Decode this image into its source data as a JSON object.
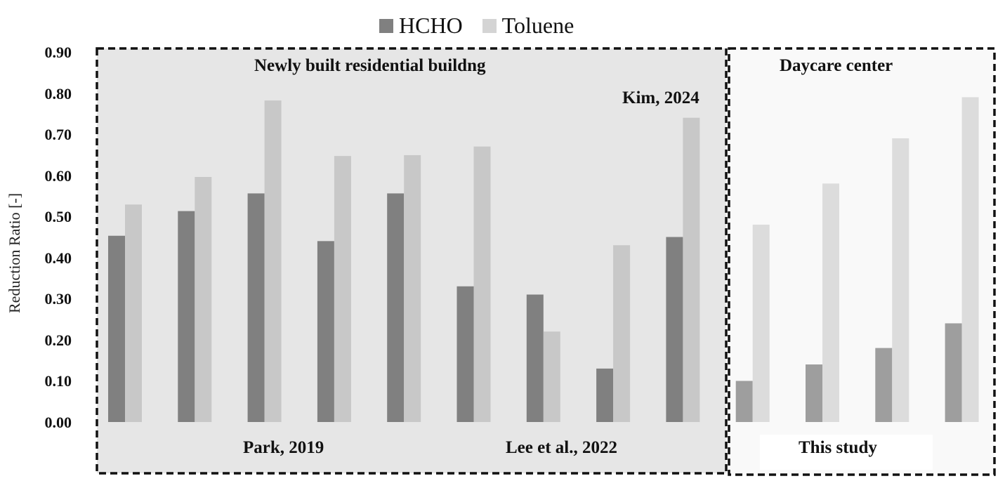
{
  "chart_data": {
    "type": "bar",
    "ylabel": "Reduction Ratio [-]",
    "ylim": [
      0,
      0.9
    ],
    "yticks": [
      "0.00",
      "0.10",
      "0.20",
      "0.30",
      "0.40",
      "0.50",
      "0.60",
      "0.70",
      "0.80",
      "0.90"
    ],
    "legend": [
      "HCHO",
      "Toluene"
    ],
    "legend_position": "top-center",
    "series": [
      {
        "name": "HCHO",
        "values": [
          0.453,
          0.513,
          0.556,
          0.44,
          0.556,
          0.33,
          0.31,
          0.13,
          0.45,
          0.1,
          0.14,
          0.18,
          0.24
        ]
      },
      {
        "name": "Toluene",
        "values": [
          0.529,
          0.596,
          0.782,
          0.647,
          0.649,
          0.67,
          0.22,
          0.43,
          0.74,
          0.48,
          0.58,
          0.69,
          0.79
        ]
      }
    ],
    "groups": [
      {
        "title": "Newly built residential buildng",
        "bar_count": 9
      },
      {
        "title": "Daycare center",
        "bar_count": 4
      }
    ],
    "annotations": {
      "park": "Park, 2019",
      "lee": "Lee et al., 2022",
      "kim": "Kim, 2024",
      "this_study": "This study"
    }
  },
  "colors": {
    "hcho_dark": "#808080",
    "toluene_dark": "#c8c8c8",
    "hcho_light": "#9e9e9e",
    "toluene_light": "#dcdcdc",
    "panel_residential": "#e6e6e6",
    "panel_daycare": "#f9f9f9"
  }
}
